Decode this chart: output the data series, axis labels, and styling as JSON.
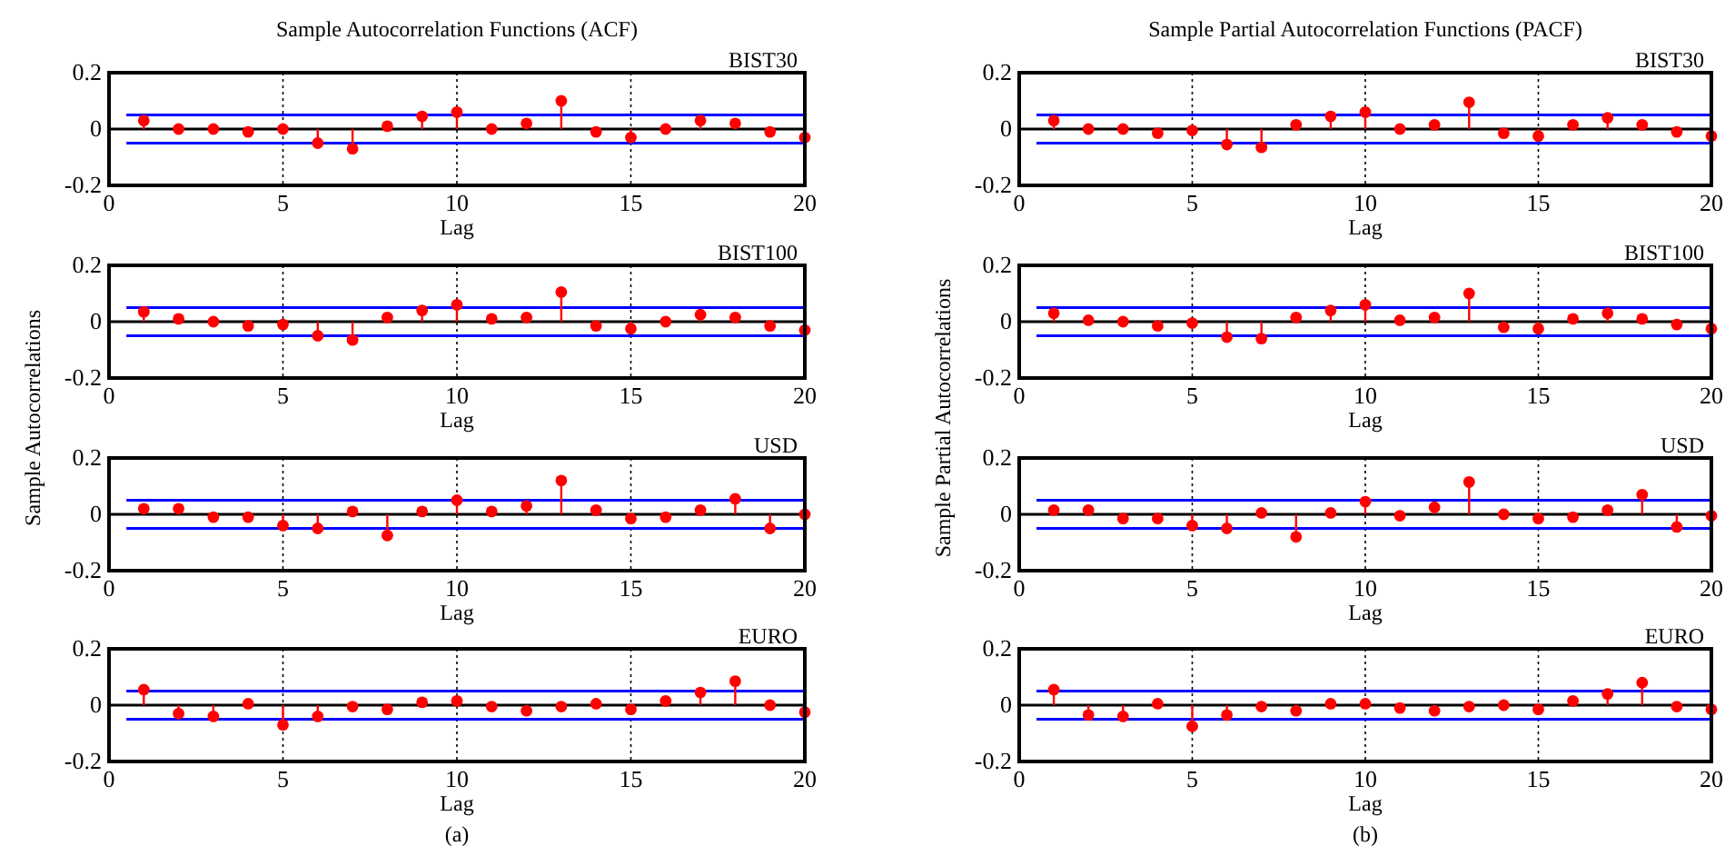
{
  "chart_data": [
    {
      "type": "lollipop",
      "title": "Sample Autocorrelation Functions (ACF)",
      "subtitle": "BIST30",
      "xlabel": "Lag",
      "x": [
        1,
        2,
        3,
        4,
        5,
        6,
        7,
        8,
        9,
        10,
        11,
        12,
        13,
        14,
        15,
        16,
        17,
        18,
        19,
        20
      ],
      "xlim": [
        0,
        20
      ],
      "xticks": [
        0,
        5,
        10,
        15,
        20
      ],
      "ylim": [
        -0.2,
        0.2
      ],
      "yticks": [
        -0.2,
        0,
        0.2
      ],
      "grid": "x",
      "marker": "circle",
      "ref_lines": [
        {
          "axis": "y",
          "value": 0.05,
          "color": "#0000ff"
        },
        {
          "axis": "y",
          "value": -0.05,
          "color": "#0000ff"
        }
      ],
      "series": [
        {
          "color": "#ff0000",
          "values": [
            0.03,
            0,
            0,
            -0.01,
            0,
            -0.05,
            -0.07,
            0.01,
            0.045,
            0.06,
            0,
            0.02,
            0.1,
            -0.01,
            -0.03,
            0,
            0.03,
            0.02,
            -0.01,
            -0.03
          ]
        }
      ]
    },
    {
      "type": "lollipop",
      "subtitle": "BIST100",
      "xlabel": "Lag",
      "ylabel": "Sample Autocorrelations",
      "x": [
        1,
        2,
        3,
        4,
        5,
        6,
        7,
        8,
        9,
        10,
        11,
        12,
        13,
        14,
        15,
        16,
        17,
        18,
        19,
        20
      ],
      "xlim": [
        0,
        20
      ],
      "xticks": [
        0,
        5,
        10,
        15,
        20
      ],
      "ylim": [
        -0.2,
        0.2
      ],
      "yticks": [
        -0.2,
        0,
        0.2
      ],
      "grid": "x",
      "marker": "circle",
      "ref_lines": [
        {
          "axis": "y",
          "value": 0.05,
          "color": "#0000ff"
        },
        {
          "axis": "y",
          "value": -0.05,
          "color": "#0000ff"
        }
      ],
      "series": [
        {
          "color": "#ff0000",
          "values": [
            0.035,
            0.01,
            0,
            -0.015,
            -0.01,
            -0.05,
            -0.065,
            0.015,
            0.04,
            0.06,
            0.01,
            0.015,
            0.105,
            -0.015,
            -0.025,
            0,
            0.025,
            0.015,
            -0.015,
            -0.03
          ]
        }
      ]
    },
    {
      "type": "lollipop",
      "subtitle": "USD",
      "xlabel": "Lag",
      "x": [
        1,
        2,
        3,
        4,
        5,
        6,
        7,
        8,
        9,
        10,
        11,
        12,
        13,
        14,
        15,
        16,
        17,
        18,
        19,
        20
      ],
      "xlim": [
        0,
        20
      ],
      "xticks": [
        0,
        5,
        10,
        15,
        20
      ],
      "ylim": [
        -0.2,
        0.2
      ],
      "yticks": [
        -0.2,
        0,
        0.2
      ],
      "grid": "x",
      "marker": "circle",
      "ref_lines": [
        {
          "axis": "y",
          "value": 0.05,
          "color": "#0000ff"
        },
        {
          "axis": "y",
          "value": -0.05,
          "color": "#0000ff"
        }
      ],
      "series": [
        {
          "color": "#ff0000",
          "values": [
            0.02,
            0.02,
            -0.01,
            -0.01,
            -0.04,
            -0.05,
            0.01,
            -0.075,
            0.01,
            0.05,
            0.01,
            0.03,
            0.12,
            0.015,
            -0.015,
            -0.01,
            0.015,
            0.055,
            -0.05,
            0
          ]
        }
      ]
    },
    {
      "type": "lollipop",
      "subtitle": "EURO",
      "xlabel": "Lag",
      "annotations": [
        "(a)"
      ],
      "x": [
        1,
        2,
        3,
        4,
        5,
        6,
        7,
        8,
        9,
        10,
        11,
        12,
        13,
        14,
        15,
        16,
        17,
        18,
        19,
        20
      ],
      "xlim": [
        0,
        20
      ],
      "xticks": [
        0,
        5,
        10,
        15,
        20
      ],
      "ylim": [
        -0.2,
        0.2
      ],
      "yticks": [
        -0.2,
        0,
        0.2
      ],
      "grid": "x",
      "marker": "circle",
      "ref_lines": [
        {
          "axis": "y",
          "value": 0.05,
          "color": "#0000ff"
        },
        {
          "axis": "y",
          "value": -0.05,
          "color": "#0000ff"
        }
      ],
      "series": [
        {
          "color": "#ff0000",
          "values": [
            0.055,
            -0.03,
            -0.04,
            0.005,
            -0.07,
            -0.04,
            -0.005,
            -0.015,
            0.01,
            0.015,
            -0.005,
            -0.02,
            -0.005,
            0.005,
            -0.015,
            0.015,
            0.045,
            0.085,
            0,
            -0.025
          ]
        }
      ]
    },
    {
      "type": "lollipop",
      "title": "Sample Partial Autocorrelation Functions (PACF)",
      "subtitle": "BIST30",
      "xlabel": "Lag",
      "x": [
        1,
        2,
        3,
        4,
        5,
        6,
        7,
        8,
        9,
        10,
        11,
        12,
        13,
        14,
        15,
        16,
        17,
        18,
        19,
        20
      ],
      "xlim": [
        0,
        20
      ],
      "xticks": [
        0,
        5,
        10,
        15,
        20
      ],
      "ylim": [
        -0.2,
        0.2
      ],
      "yticks": [
        -0.2,
        0,
        0.2
      ],
      "grid": "x",
      "marker": "circle",
      "ref_lines": [
        {
          "axis": "y",
          "value": 0.05,
          "color": "#0000ff"
        },
        {
          "axis": "y",
          "value": -0.05,
          "color": "#0000ff"
        }
      ],
      "series": [
        {
          "color": "#ff0000",
          "values": [
            0.03,
            0,
            0,
            -0.015,
            -0.005,
            -0.055,
            -0.065,
            0.015,
            0.045,
            0.06,
            0,
            0.015,
            0.095,
            -0.015,
            -0.025,
            0.015,
            0.04,
            0.015,
            -0.01,
            -0.025
          ]
        }
      ]
    },
    {
      "type": "lollipop",
      "subtitle": "BIST100",
      "xlabel": "Lag",
      "ylabel": "Sample Partial Autocorrelations",
      "x": [
        1,
        2,
        3,
        4,
        5,
        6,
        7,
        8,
        9,
        10,
        11,
        12,
        13,
        14,
        15,
        16,
        17,
        18,
        19,
        20
      ],
      "xlim": [
        0,
        20
      ],
      "xticks": [
        0,
        5,
        10,
        15,
        20
      ],
      "ylim": [
        -0.2,
        0.2
      ],
      "yticks": [
        -0.2,
        0,
        0.2
      ],
      "grid": "x",
      "marker": "circle",
      "ref_lines": [
        {
          "axis": "y",
          "value": 0.05,
          "color": "#0000ff"
        },
        {
          "axis": "y",
          "value": -0.05,
          "color": "#0000ff"
        }
      ],
      "series": [
        {
          "color": "#ff0000",
          "values": [
            0.03,
            0.005,
            0,
            -0.015,
            -0.005,
            -0.055,
            -0.06,
            0.015,
            0.04,
            0.06,
            0.005,
            0.015,
            0.1,
            -0.02,
            -0.025,
            0.01,
            0.03,
            0.01,
            -0.01,
            -0.025
          ]
        }
      ]
    },
    {
      "type": "lollipop",
      "subtitle": "USD",
      "xlabel": "Lag",
      "x": [
        1,
        2,
        3,
        4,
        5,
        6,
        7,
        8,
        9,
        10,
        11,
        12,
        13,
        14,
        15,
        16,
        17,
        18,
        19,
        20
      ],
      "xlim": [
        0,
        20
      ],
      "xticks": [
        0,
        5,
        10,
        15,
        20
      ],
      "ylim": [
        -0.2,
        0.2
      ],
      "yticks": [
        -0.2,
        0,
        0.2
      ],
      "grid": "x",
      "marker": "circle",
      "ref_lines": [
        {
          "axis": "y",
          "value": 0.05,
          "color": "#0000ff"
        },
        {
          "axis": "y",
          "value": -0.05,
          "color": "#0000ff"
        }
      ],
      "series": [
        {
          "color": "#ff0000",
          "values": [
            0.015,
            0.015,
            -0.015,
            -0.015,
            -0.04,
            -0.05,
            0.005,
            -0.08,
            0.005,
            0.045,
            -0.005,
            0.025,
            0.115,
            0,
            -0.015,
            -0.01,
            0.015,
            0.07,
            -0.045,
            -0.005
          ]
        }
      ]
    },
    {
      "type": "lollipop",
      "subtitle": "EURO",
      "xlabel": "Lag",
      "annotations": [
        "(b)"
      ],
      "x": [
        1,
        2,
        3,
        4,
        5,
        6,
        7,
        8,
        9,
        10,
        11,
        12,
        13,
        14,
        15,
        16,
        17,
        18,
        19,
        20
      ],
      "xlim": [
        0,
        20
      ],
      "xticks": [
        0,
        5,
        10,
        15,
        20
      ],
      "ylim": [
        -0.2,
        0.2
      ],
      "yticks": [
        -0.2,
        0,
        0.2
      ],
      "grid": "x",
      "marker": "circle",
      "ref_lines": [
        {
          "axis": "y",
          "value": 0.05,
          "color": "#0000ff"
        },
        {
          "axis": "y",
          "value": -0.05,
          "color": "#0000ff"
        }
      ],
      "series": [
        {
          "color": "#ff0000",
          "values": [
            0.055,
            -0.035,
            -0.04,
            0.005,
            -0.075,
            -0.035,
            -0.005,
            -0.02,
            0.005,
            0.005,
            -0.01,
            -0.02,
            -0.005,
            0,
            -0.015,
            0.015,
            0.04,
            0.08,
            -0.005,
            -0.015
          ]
        }
      ]
    }
  ]
}
